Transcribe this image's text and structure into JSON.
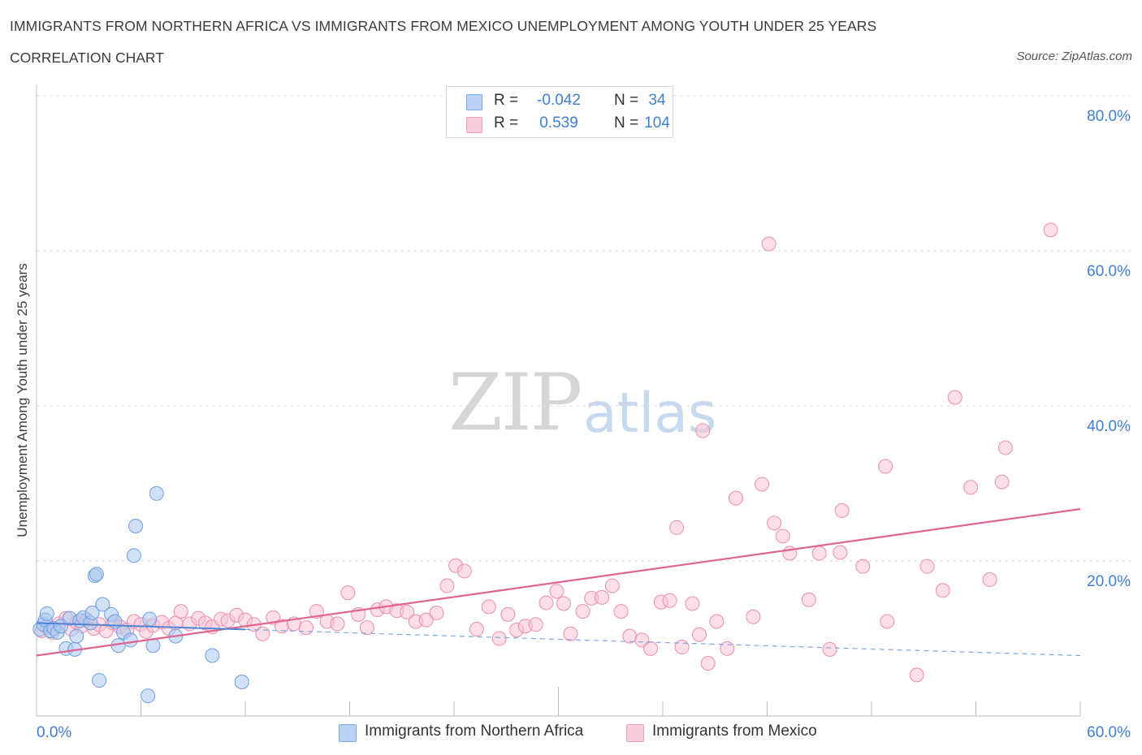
{
  "title": "IMMIGRANTS FROM NORTHERN AFRICA VS IMMIGRANTS FROM MEXICO UNEMPLOYMENT AMONG YOUTH UNDER 25 YEARS",
  "subtitle": "CORRELATION CHART",
  "source": "Source: ZipAtlas.com",
  "watermark": {
    "zip": "ZIP",
    "atlas": "atlas"
  },
  "legend": {
    "r_label": "R =",
    "n_label": "N =",
    "rows": [
      {
        "r": "-0.042",
        "n": "34"
      },
      {
        "r": "0.539",
        "n": "104"
      }
    ]
  },
  "chart_data": {
    "type": "scatter",
    "title": "IMMIGRANTS FROM NORTHERN AFRICA VS IMMIGRANTS FROM MEXICO UNEMPLOYMENT AMONG YOUTH UNDER 25 YEARS",
    "xlabel": "",
    "ylabel": "Unemployment Among Youth under 25 years",
    "xlim": [
      0,
      60
    ],
    "ylim": [
      0,
      80
    ],
    "x_tick_labels": [
      "0.0%",
      "60.0%"
    ],
    "y_ticks": [
      20,
      40,
      60,
      80
    ],
    "y_tick_labels": [
      "20.0%",
      "40.0%",
      "60.0%",
      "80.0%"
    ],
    "grid": true,
    "legend_position": "top-center",
    "series": [
      {
        "name": "Immigrants from Northern Africa",
        "color": "#a9c8f0",
        "stroke": "#6e9fe0",
        "r": -0.042,
        "n": 34,
        "trend": {
          "x0": 0,
          "y0": 12.0,
          "x1": 60,
          "y1": 7.8,
          "solid_until": 12
        },
        "points": [
          [
            0.2,
            11.2
          ],
          [
            0.4,
            11.8
          ],
          [
            0.5,
            12.4
          ],
          [
            0.6,
            13.2
          ],
          [
            0.8,
            11.0
          ],
          [
            1.0,
            11.3
          ],
          [
            1.2,
            10.8
          ],
          [
            1.4,
            11.6
          ],
          [
            1.7,
            8.7
          ],
          [
            1.9,
            12.6
          ],
          [
            2.2,
            8.6
          ],
          [
            2.3,
            10.3
          ],
          [
            2.5,
            12.3
          ],
          [
            2.7,
            12.7
          ],
          [
            3.1,
            12.0
          ],
          [
            3.2,
            13.3
          ],
          [
            3.35,
            18.1
          ],
          [
            3.45,
            18.3
          ],
          [
            3.6,
            4.6
          ],
          [
            3.8,
            14.4
          ],
          [
            4.3,
            13.1
          ],
          [
            4.5,
            12.2
          ],
          [
            4.7,
            9.1
          ],
          [
            5.0,
            10.8
          ],
          [
            5.4,
            9.8
          ],
          [
            5.6,
            20.7
          ],
          [
            5.7,
            24.5
          ],
          [
            6.4,
            2.6
          ],
          [
            6.5,
            12.5
          ],
          [
            6.7,
            9.1
          ],
          [
            6.9,
            28.7
          ],
          [
            8.0,
            10.3
          ],
          [
            10.1,
            7.8
          ],
          [
            11.8,
            4.4
          ]
        ]
      },
      {
        "name": "Immigrants from Mexico",
        "color": "#f7c3d4",
        "stroke": "#ea8fae",
        "r": 0.539,
        "n": 104,
        "trend": {
          "x0": 0,
          "y0": 7.8,
          "x1": 60,
          "y1": 26.7
        },
        "points": [
          [
            0.3,
            11.0
          ],
          [
            0.6,
            11.5
          ],
          [
            0.9,
            10.8
          ],
          [
            1.3,
            11.9
          ],
          [
            1.7,
            12.6
          ],
          [
            2.0,
            11.2
          ],
          [
            2.3,
            12.1
          ],
          [
            2.6,
            11.6
          ],
          [
            2.9,
            12.4
          ],
          [
            3.3,
            11.3
          ],
          [
            3.6,
            11.8
          ],
          [
            4.0,
            11.0
          ],
          [
            4.4,
            12.0
          ],
          [
            4.8,
            11.5
          ],
          [
            5.2,
            11.1
          ],
          [
            5.6,
            12.2
          ],
          [
            6.0,
            11.8
          ],
          [
            6.3,
            10.9
          ],
          [
            6.7,
            11.7
          ],
          [
            7.2,
            12.1
          ],
          [
            7.6,
            11.3
          ],
          [
            8.0,
            12.0
          ],
          [
            8.3,
            13.5
          ],
          [
            8.8,
            11.9
          ],
          [
            9.3,
            12.6
          ],
          [
            9.7,
            12.0
          ],
          [
            10.1,
            11.5
          ],
          [
            10.6,
            12.5
          ],
          [
            11.0,
            12.3
          ],
          [
            11.5,
            13.0
          ],
          [
            12.0,
            12.4
          ],
          [
            12.5,
            11.8
          ],
          [
            13.0,
            10.6
          ],
          [
            13.6,
            12.7
          ],
          [
            14.1,
            11.6
          ],
          [
            14.8,
            11.9
          ],
          [
            15.5,
            11.4
          ],
          [
            16.1,
            13.5
          ],
          [
            16.7,
            12.2
          ],
          [
            17.3,
            11.9
          ],
          [
            17.9,
            15.9
          ],
          [
            18.5,
            13.1
          ],
          [
            19.0,
            11.4
          ],
          [
            19.6,
            13.7
          ],
          [
            20.1,
            14.1
          ],
          [
            20.7,
            13.6
          ],
          [
            21.3,
            13.4
          ],
          [
            21.8,
            12.2
          ],
          [
            22.4,
            12.4
          ],
          [
            23.0,
            13.3
          ],
          [
            23.6,
            16.8
          ],
          [
            24.1,
            19.4
          ],
          [
            24.6,
            18.7
          ],
          [
            25.3,
            11.2
          ],
          [
            26.0,
            14.1
          ],
          [
            26.6,
            10.0
          ],
          [
            27.1,
            13.1
          ],
          [
            27.6,
            11.1
          ],
          [
            28.1,
            11.6
          ],
          [
            28.7,
            11.8
          ],
          [
            29.3,
            14.6
          ],
          [
            29.9,
            16.1
          ],
          [
            30.3,
            14.5
          ],
          [
            30.7,
            10.6
          ],
          [
            31.4,
            13.5
          ],
          [
            31.9,
            15.2
          ],
          [
            32.5,
            15.3
          ],
          [
            33.1,
            16.8
          ],
          [
            33.6,
            13.5
          ],
          [
            34.1,
            10.3
          ],
          [
            34.8,
            9.8
          ],
          [
            35.3,
            8.7
          ],
          [
            35.9,
            14.7
          ],
          [
            36.4,
            14.9
          ],
          [
            37.1,
            8.9
          ],
          [
            37.7,
            14.5
          ],
          [
            38.1,
            10.5
          ],
          [
            38.6,
            6.8
          ],
          [
            39.1,
            12.2
          ],
          [
            39.7,
            8.7
          ],
          [
            40.2,
            28.1
          ],
          [
            41.2,
            12.8
          ],
          [
            41.7,
            29.9
          ],
          [
            42.1,
            60.9
          ],
          [
            42.4,
            24.9
          ],
          [
            42.9,
            23.2
          ],
          [
            43.3,
            21.0
          ],
          [
            44.4,
            15.0
          ],
          [
            45.0,
            21.0
          ],
          [
            45.6,
            8.6
          ],
          [
            46.2,
            21.1
          ],
          [
            46.3,
            26.5
          ],
          [
            47.5,
            19.3
          ],
          [
            48.8,
            32.2
          ],
          [
            48.9,
            12.2
          ],
          [
            50.6,
            5.3
          ],
          [
            51.2,
            19.3
          ],
          [
            52.1,
            16.2
          ],
          [
            52.8,
            41.1
          ],
          [
            53.7,
            29.5
          ],
          [
            54.8,
            17.6
          ],
          [
            55.5,
            30.2
          ],
          [
            55.7,
            34.6
          ],
          [
            58.3,
            62.7
          ],
          [
            38.3,
            36.8
          ],
          [
            36.8,
            24.3
          ]
        ]
      }
    ]
  },
  "bottom_legend": [
    "Immigrants from Northern Africa",
    "Immigrants from Mexico"
  ]
}
